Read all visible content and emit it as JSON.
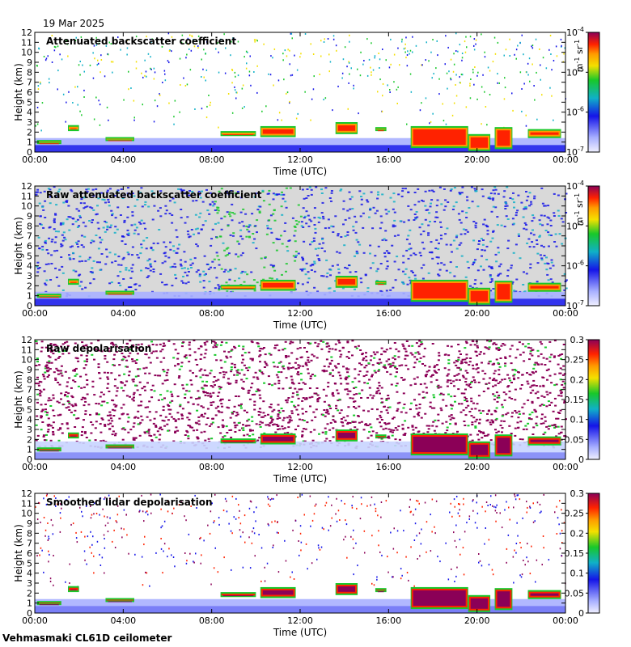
{
  "date_label": "19 Mar 2025",
  "footer_label": "Vehmasmaki CL61D ceilometer",
  "palette": {
    "magenta": "#8b0057",
    "red": "#ff2200",
    "orange": "#ff9a00",
    "yellow": "#f4e000",
    "green": "#18c82a",
    "cyan": "#10b0c8",
    "blue": "#1414e8",
    "light_blue": "#a8b0ff",
    "background_grey": "#d9d9d9"
  },
  "chart_data": [
    {
      "type": "heatmap",
      "title": "Attenuated backscatter coefficient",
      "xlabel": "Time (UTC)",
      "ylabel": "Height (km)",
      "xticks": [
        "00:00",
        "04:00",
        "08:00",
        "12:00",
        "16:00",
        "20:00",
        "00:00"
      ],
      "yticks": [
        "0",
        "1",
        "2",
        "3",
        "4",
        "5",
        "6",
        "7",
        "8",
        "9",
        "10",
        "11",
        "12"
      ],
      "ylim": [
        0,
        12
      ],
      "xlim_hours": [
        0,
        24
      ],
      "colorbar": {
        "scale": "log",
        "ticks": [
          "10-7",
          "10-6",
          "10-5",
          "10-4"
        ],
        "unit": "m-1 sr-1"
      }
    },
    {
      "type": "heatmap",
      "title": "Raw attenuated backscatter coefficient",
      "xlabel": "Time (UTC)",
      "ylabel": "Height (km)",
      "xticks": [
        "00:00",
        "04:00",
        "08:00",
        "12:00",
        "16:00",
        "20:00",
        "00:00"
      ],
      "yticks": [
        "0",
        "1",
        "2",
        "3",
        "4",
        "5",
        "6",
        "7",
        "8",
        "9",
        "10",
        "11",
        "12"
      ],
      "ylim": [
        0,
        12
      ],
      "xlim_hours": [
        0,
        24
      ],
      "colorbar": {
        "scale": "log",
        "ticks": [
          "10-7",
          "10-6",
          "10-5",
          "10-4"
        ],
        "unit": "m-1 sr-1"
      }
    },
    {
      "type": "heatmap",
      "title": "Raw depolarisation",
      "xlabel": "Time (UTC)",
      "ylabel": "Height (km)",
      "xticks": [
        "00:00",
        "04:00",
        "08:00",
        "12:00",
        "16:00",
        "20:00",
        "00:00"
      ],
      "yticks": [
        "0",
        "1",
        "2",
        "3",
        "4",
        "5",
        "6",
        "7",
        "8",
        "9",
        "10",
        "11",
        "12"
      ],
      "ylim": [
        0,
        12
      ],
      "xlim_hours": [
        0,
        24
      ],
      "colorbar": {
        "scale": "linear",
        "ticks": [
          "0",
          "0.05",
          "0.1",
          "0.15",
          "0.2",
          "0.25",
          "0.3"
        ],
        "unit": ""
      }
    },
    {
      "type": "heatmap",
      "title": "Smoothed lidar depolarisation",
      "xlabel": "Time (UTC)",
      "ylabel": "Height (km)",
      "xticks": [
        "00:00",
        "04:00",
        "08:00",
        "12:00",
        "16:00",
        "20:00",
        "00:00"
      ],
      "yticks": [
        "0",
        "1",
        "2",
        "3",
        "4",
        "5",
        "6",
        "7",
        "8",
        "9",
        "10",
        "11",
        "12"
      ],
      "ylim": [
        0,
        12
      ],
      "xlim_hours": [
        0,
        24
      ],
      "colorbar": {
        "scale": "linear",
        "ticks": [
          "0",
          "0.05",
          "0.1",
          "0.15",
          "0.2",
          "0.25",
          "0.3"
        ],
        "unit": ""
      }
    }
  ]
}
